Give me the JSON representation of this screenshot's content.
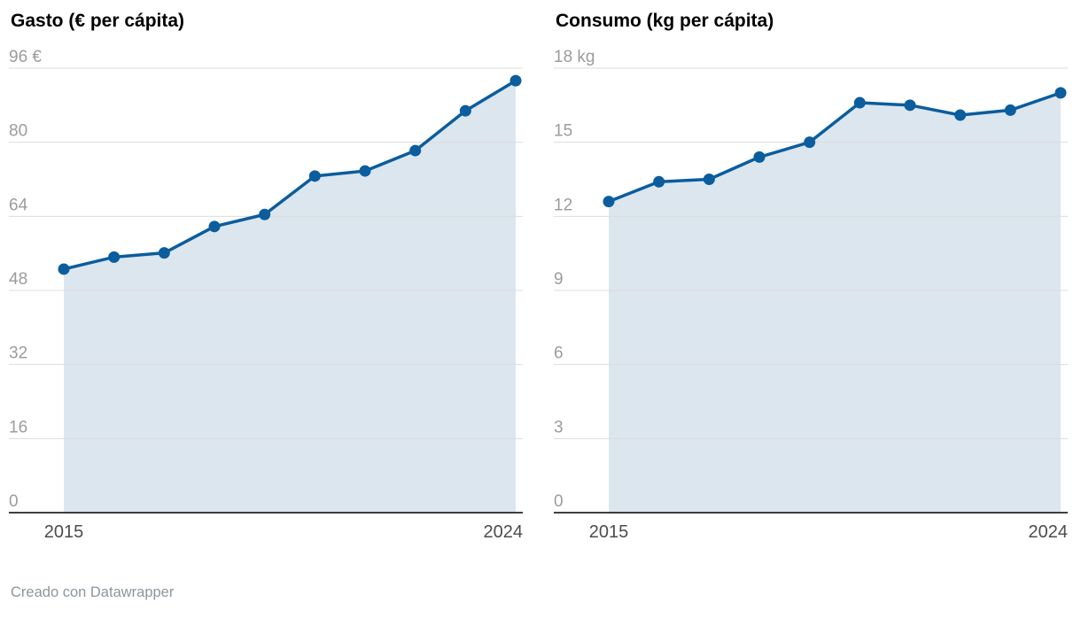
{
  "page": {
    "footer": "Creado con Datawrapper"
  },
  "colors": {
    "line": "#0b5d9d",
    "area": "#dce6ef",
    "grid": "#dcdcdc",
    "axis": "#000000",
    "ytick_text": "#9c9c9c",
    "xtick_text": "#4c4c4c"
  },
  "chart_data": [
    {
      "type": "area",
      "title": "Gasto (€ per cápita)",
      "x": [
        2015,
        2016,
        2017,
        2018,
        2019,
        2020,
        2021,
        2022,
        2023,
        2024
      ],
      "values": [
        52.6,
        55.2,
        56.1,
        61.8,
        64.4,
        72.7,
        73.8,
        78.2,
        86.8,
        93.3
      ],
      "ylim": [
        0,
        96
      ],
      "yticks": [
        {
          "value": 96,
          "label": "96 €"
        },
        {
          "value": 80,
          "label": "80"
        },
        {
          "value": 64,
          "label": "64"
        },
        {
          "value": 48,
          "label": "48"
        },
        {
          "value": 32,
          "label": "32"
        },
        {
          "value": 16,
          "label": "16"
        },
        {
          "value": 0,
          "label": "0"
        }
      ],
      "xticks": [
        {
          "value": 2015,
          "label": "2015"
        },
        {
          "value": 2024,
          "label": "2024"
        }
      ],
      "grid": true,
      "legend": "none"
    },
    {
      "type": "area",
      "title": "Consumo (kg per cápita)",
      "x": [
        2015,
        2016,
        2017,
        2018,
        2019,
        2020,
        2021,
        2022,
        2023,
        2024
      ],
      "values": [
        12.6,
        13.4,
        13.5,
        14.4,
        15.0,
        16.6,
        16.5,
        16.1,
        16.3,
        17.0
      ],
      "ylim": [
        0,
        18
      ],
      "yticks": [
        {
          "value": 18,
          "label": "18 kg"
        },
        {
          "value": 15,
          "label": "15"
        },
        {
          "value": 12,
          "label": "12"
        },
        {
          "value": 9,
          "label": "9"
        },
        {
          "value": 6,
          "label": "6"
        },
        {
          "value": 3,
          "label": "3"
        },
        {
          "value": 0,
          "label": "0"
        }
      ],
      "xticks": [
        {
          "value": 2015,
          "label": "2015"
        },
        {
          "value": 2024,
          "label": "2024"
        }
      ],
      "grid": true,
      "legend": "none"
    }
  ]
}
